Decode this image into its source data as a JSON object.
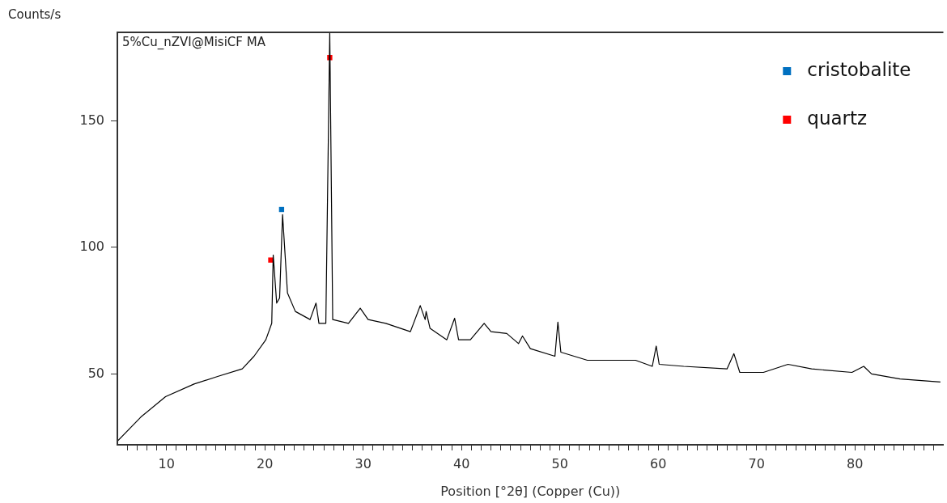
{
  "chart_data": {
    "type": "line",
    "ylabel": "Counts/s",
    "xlabel": "Position [°2θ] (Copper (Cu))",
    "annotations": [
      "5%Cu_nZVI@MisiCF MA"
    ],
    "x": [
      5,
      7.4,
      9.9,
      12.8,
      15.2,
      17.7,
      18.9,
      20.1,
      20.7,
      20.85,
      21.2,
      21.5,
      21.8,
      22.3,
      23.1,
      24.6,
      25.2,
      25.5,
      26.2,
      26.6,
      26.9,
      28.5,
      29.7,
      30.5,
      32.3,
      34.8,
      35.8,
      36.3,
      36.4,
      36.8,
      38.5,
      39.3,
      39.7,
      40.9,
      42.3,
      43,
      44.6,
      45.8,
      46.2,
      47,
      49.5,
      49.8,
      50.1,
      52.8,
      55.2,
      57.7,
      59.4,
      59.8,
      60.1,
      62.6,
      67,
      67.7,
      68.3,
      70.7,
      73.2,
      75.6,
      79.7,
      80.9,
      81.7,
      84.6,
      88.7
    ],
    "series": [
      {
        "color": "#000000",
        "values": [
          23.4,
          33,
          41,
          46,
          49,
          52,
          57,
          63.5,
          70,
          97,
          78,
          80,
          113,
          82,
          74.7,
          71.5,
          78,
          70,
          70,
          185,
          71.5,
          70,
          76,
          71.5,
          70,
          66.7,
          77,
          71.5,
          74.7,
          68,
          63.5,
          72,
          63.5,
          63.5,
          70,
          66.7,
          66,
          62,
          65,
          60,
          57,
          70.5,
          58.6,
          55.4,
          55.4,
          55.4,
          53,
          61,
          53.8,
          53,
          52,
          58,
          50.6,
          50.6,
          53.8,
          52,
          50.6,
          53,
          50,
          48,
          46.8
        ]
      },
      {
        "type": "scatter",
        "name": "cristobalite",
        "color": "#0070c0",
        "x": [
          21.7
        ],
        "values": [
          115
        ],
        "marker": "square"
      },
      {
        "type": "scatter",
        "name": "quartz",
        "color": "#ff0000",
        "x": [
          20.6,
          26.6
        ],
        "values": [
          95,
          175
        ],
        "marker": "square"
      }
    ],
    "xlim": [
      5,
      89
    ],
    "ylim": [
      22,
      185
    ],
    "xticks": [
      {
        "value": 6,
        "label": null
      },
      {
        "value": 7,
        "label": null
      },
      {
        "value": 8,
        "label": null
      },
      {
        "value": 9,
        "label": null
      },
      10,
      {
        "value": 11,
        "label": null
      },
      {
        "value": 12,
        "label": null
      },
      {
        "value": 13,
        "label": null
      },
      {
        "value": 14,
        "label": null
      },
      {
        "value": 15,
        "label": null
      },
      {
        "value": 16,
        "label": null
      },
      {
        "value": 17,
        "label": null
      },
      {
        "value": 18,
        "label": null
      },
      {
        "value": 19,
        "label": null
      },
      20,
      {
        "value": 21,
        "label": null
      },
      {
        "value": 22,
        "label": null
      },
      {
        "value": 23,
        "label": null
      },
      {
        "value": 24,
        "label": null
      },
      {
        "value": 25,
        "label": null
      },
      {
        "value": 26,
        "label": null
      },
      {
        "value": 27,
        "label": null
      },
      {
        "value": 28,
        "label": null
      },
      {
        "value": 29,
        "label": null
      },
      30,
      {
        "value": 31,
        "label": null
      },
      {
        "value": 32,
        "label": null
      },
      {
        "value": 33,
        "label": null
      },
      {
        "value": 34,
        "label": null
      },
      {
        "value": 35,
        "label": null
      },
      {
        "value": 36,
        "label": null
      },
      {
        "value": 37,
        "label": null
      },
      {
        "value": 38,
        "label": null
      },
      {
        "value": 39,
        "label": null
      },
      40,
      {
        "value": 41,
        "label": null
      },
      {
        "value": 42,
        "label": null
      },
      {
        "value": 43,
        "label": null
      },
      {
        "value": 44,
        "label": null
      },
      {
        "value": 45,
        "label": null
      },
      {
        "value": 46,
        "label": null
      },
      {
        "value": 47,
        "label": null
      },
      {
        "value": 48,
        "label": null
      },
      {
        "value": 49,
        "label": null
      },
      50,
      {
        "value": 51,
        "label": null
      },
      {
        "value": 52,
        "label": null
      },
      {
        "value": 53,
        "label": null
      },
      {
        "value": 54,
        "label": null
      },
      {
        "value": 55,
        "label": null
      },
      {
        "value": 56,
        "label": null
      },
      {
        "value": 57,
        "label": null
      },
      {
        "value": 58,
        "label": null
      },
      {
        "value": 59,
        "label": null
      },
      60,
      {
        "value": 61,
        "label": null
      },
      {
        "value": 62,
        "label": null
      },
      {
        "value": 63,
        "label": null
      },
      {
        "value": 64,
        "label": null
      },
      {
        "value": 65,
        "label": null
      },
      {
        "value": 66,
        "label": null
      },
      {
        "value": 67,
        "label": null
      },
      {
        "value": 68,
        "label": null
      },
      {
        "value": 69,
        "label": null
      },
      70,
      {
        "value": 71,
        "label": null
      },
      {
        "value": 72,
        "label": null
      },
      {
        "value": 73,
        "label": null
      },
      {
        "value": 74,
        "label": null
      },
      {
        "value": 75,
        "label": null
      },
      {
        "value": 76,
        "label": null
      },
      {
        "value": 77,
        "label": null
      },
      {
        "value": 78,
        "label": null
      },
      {
        "value": 79,
        "label": null
      },
      80,
      {
        "value": 81,
        "label": null
      },
      {
        "value": 82,
        "label": null
      },
      {
        "value": 83,
        "label": null
      },
      {
        "value": 84,
        "label": null
      },
      {
        "value": 85,
        "label": null
      },
      {
        "value": 86,
        "label": null
      },
      {
        "value": 87,
        "label": null
      },
      {
        "value": 88,
        "label": null
      }
    ],
    "yticks": [
      50,
      100,
      150
    ],
    "grid": false,
    "legend": "top right",
    "marker": "none",
    "line_style": "solid"
  }
}
